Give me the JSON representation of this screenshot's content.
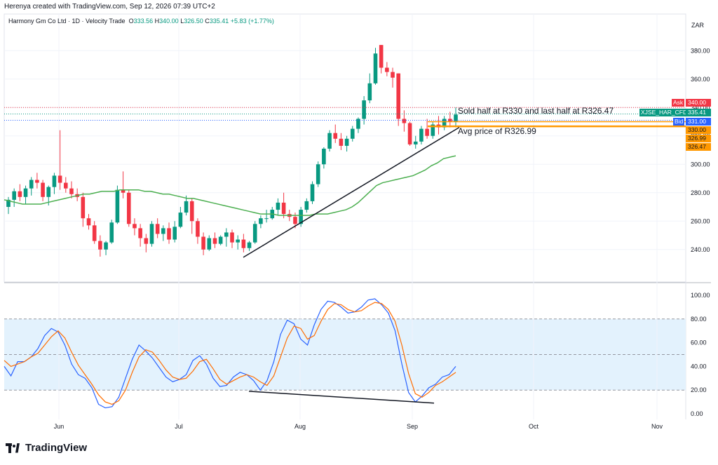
{
  "header": {
    "credit": "Herenya created with TradingView.com, Sep 12, 2026 07:39 UTC+2"
  },
  "symbol": {
    "name": "Harmony Gm Co Ltd · 1D · Velocity Trade",
    "o_label": "O",
    "o": "333.56",
    "h_label": "H",
    "h": "340.00",
    "l_label": "L",
    "l": "326.50",
    "c_label": "C",
    "c": "335.41",
    "change": "+5.83 (+1.77%)"
  },
  "currency": "ZAR",
  "brand": "TradingView",
  "annotations": {
    "sold": "Sold half at R330 and last half at R326.47",
    "avg": "Avg price of R326.99"
  },
  "tags": {
    "ask": "Ask",
    "ask_value": "340.00",
    "instrument": "XJSE_HAR_CFD",
    "instrument_value": "335.41",
    "bid": "Bid",
    "bid_value": "331.00",
    "level1": "330.00",
    "level2": "326.99",
    "level3": "326.47"
  },
  "colors": {
    "up": "#089981",
    "down": "#f23645",
    "ma": "#4caf50",
    "stoch_k": "#2962ff",
    "stoch_d": "#ff6d00",
    "band": "#e3f2fd",
    "orange": "#ff9800",
    "ask": "#f23645",
    "bid": "#2962ff",
    "inst": "#089981"
  },
  "chart_data": [
    {
      "type": "candlestick",
      "ylim": [
        230,
        390
      ],
      "y_ticks": [
        "380.00",
        "360.00",
        "340.00",
        "320.00",
        "300.00",
        "280.00",
        "260.00",
        "240.00"
      ],
      "x_ticks": [
        "Jun",
        "Jul",
        "Aug",
        "Sep",
        "Oct",
        "Nov"
      ],
      "candles": [
        [
          270,
          277,
          265,
          275
        ],
        [
          275,
          283,
          270,
          281
        ],
        [
          281,
          286,
          274,
          277
        ],
        [
          277,
          285,
          272,
          283
        ],
        [
          283,
          291,
          278,
          289
        ],
        [
          289,
          294,
          283,
          287
        ],
        [
          287,
          289,
          274,
          277
        ],
        [
          277,
          285,
          271,
          284
        ],
        [
          284,
          294,
          279,
          292
        ],
        [
          292,
          324,
          282,
          287
        ],
        [
          287,
          291,
          280,
          283
        ],
        [
          283,
          288,
          276,
          279
        ],
        [
          279,
          283,
          274,
          277
        ],
        [
          277,
          280,
          256,
          262
        ],
        [
          262,
          265,
          254,
          257
        ],
        [
          257,
          260,
          244,
          246
        ],
        [
          246,
          250,
          235,
          240
        ],
        [
          240,
          246,
          236,
          245
        ],
        [
          245,
          261,
          244,
          259
        ],
        [
          259,
          285,
          258,
          282
        ],
        [
          282,
          295,
          276,
          280
        ],
        [
          280,
          282,
          256,
          258
        ],
        [
          258,
          262,
          250,
          255
        ],
        [
          255,
          258,
          242,
          248
        ],
        [
          248,
          251,
          238,
          244
        ],
        [
          244,
          260,
          242,
          258
        ],
        [
          258,
          262,
          248,
          251
        ],
        [
          251,
          257,
          246,
          255
        ],
        [
          255,
          259,
          244,
          247
        ],
        [
          247,
          260,
          245,
          256
        ],
        [
          256,
          270,
          255,
          266
        ],
        [
          266,
          278,
          264,
          274
        ],
        [
          274,
          276,
          251,
          260
        ],
        [
          260,
          262,
          244,
          249
        ],
        [
          249,
          252,
          236,
          240
        ],
        [
          240,
          250,
          239,
          248
        ],
        [
          248,
          252,
          241,
          244
        ],
        [
          244,
          250,
          243,
          249
        ],
        [
          249,
          255,
          242,
          252
        ],
        [
          252,
          254,
          241,
          245
        ],
        [
          245,
          250,
          240,
          247
        ],
        [
          247,
          251,
          238,
          241
        ],
        [
          241,
          246,
          239,
          245
        ],
        [
          245,
          260,
          244,
          258
        ],
        [
          258,
          264,
          255,
          262
        ],
        [
          262,
          268,
          259,
          262
        ],
        [
          262,
          270,
          261,
          268
        ],
        [
          268,
          276,
          264,
          273
        ],
        [
          273,
          280,
          262,
          265
        ],
        [
          265,
          268,
          260,
          263
        ],
        [
          263,
          266,
          255,
          258
        ],
        [
          258,
          270,
          256,
          268
        ],
        [
          268,
          276,
          266,
          274
        ],
        [
          274,
          288,
          272,
          286
        ],
        [
          286,
          302,
          284,
          300
        ],
        [
          300,
          312,
          297,
          311
        ],
        [
          311,
          324,
          309,
          322
        ],
        [
          322,
          328,
          315,
          318
        ],
        [
          318,
          322,
          310,
          313
        ],
        [
          313,
          320,
          309,
          318
        ],
        [
          318,
          327,
          316,
          325
        ],
        [
          325,
          333,
          322,
          332
        ],
        [
          332,
          348,
          328,
          345
        ],
        [
          345,
          364,
          343,
          357
        ],
        [
          357,
          382,
          356,
          378
        ],
        [
          384,
          384,
          364,
          368
        ],
        [
          368,
          372,
          362,
          365
        ],
        [
          365,
          368,
          354,
          361
        ],
        [
          364,
          364,
          327,
          332
        ],
        [
          332,
          338,
          323,
          329
        ],
        [
          329,
          330,
          313,
          314
        ],
        [
          314,
          320,
          311,
          316
        ],
        [
          316,
          327,
          314,
          325
        ],
        [
          325,
          332,
          318,
          320
        ],
        [
          320,
          330,
          318,
          328
        ],
        [
          328,
          334,
          321,
          326
        ],
        [
          326,
          334,
          324,
          332
        ],
        [
          332,
          337,
          326,
          330
        ],
        [
          330,
          340,
          326,
          335
        ]
      ],
      "moving_average": [
        275,
        274,
        273,
        272,
        272,
        272,
        272,
        273,
        274,
        275,
        276,
        277,
        278,
        279,
        279,
        280,
        281,
        281,
        281,
        282,
        282,
        282,
        282,
        281,
        281,
        280,
        279,
        279,
        278,
        277,
        276,
        276,
        275,
        274,
        273,
        272,
        271,
        270,
        269,
        268,
        267,
        266,
        265,
        265,
        265,
        264,
        264,
        264,
        264,
        264,
        264,
        265,
        265,
        265,
        266,
        267,
        268,
        270,
        273,
        277,
        281,
        285,
        287,
        288,
        289,
        290,
        291,
        292,
        294,
        296,
        299,
        301,
        304,
        305,
        306
      ]
    },
    {
      "type": "line",
      "name": "Stochastic",
      "ylim": [
        0,
        100
      ],
      "y_ticks": [
        "100.00",
        "80.00",
        "60.00",
        "40.00",
        "20.00",
        "0.00"
      ],
      "series": [
        {
          "name": "%K",
          "values": [
            40,
            32,
            44,
            44,
            48,
            55,
            66,
            72,
            69,
            58,
            42,
            33,
            30,
            22,
            8,
            5,
            6,
            14,
            30,
            46,
            58,
            53,
            47,
            39,
            31,
            27,
            29,
            33,
            45,
            49,
            42,
            30,
            23,
            24,
            31,
            35,
            33,
            28,
            20,
            28,
            44,
            67,
            79,
            76,
            63,
            58,
            75,
            88,
            95,
            94,
            90,
            85,
            86,
            90,
            96,
            97,
            92,
            85,
            70,
            42,
            18,
            10,
            15,
            22,
            25,
            31,
            33,
            40
          ]
        },
        {
          "name": "%D",
          "values": [
            45,
            40,
            42,
            44,
            48,
            51,
            58,
            65,
            70,
            64,
            52,
            41,
            33,
            25,
            16,
            10,
            8,
            11,
            20,
            35,
            48,
            54,
            52,
            45,
            37,
            31,
            29,
            30,
            36,
            44,
            46,
            38,
            29,
            25,
            28,
            31,
            33,
            31,
            27,
            24,
            32,
            48,
            64,
            74,
            72,
            63,
            66,
            78,
            88,
            93,
            92,
            88,
            86,
            87,
            91,
            94,
            93,
            88,
            78,
            58,
            34,
            17,
            14,
            18,
            24,
            27,
            31,
            35
          ]
        }
      ],
      "bands": [
        20,
        50,
        80
      ]
    }
  ]
}
